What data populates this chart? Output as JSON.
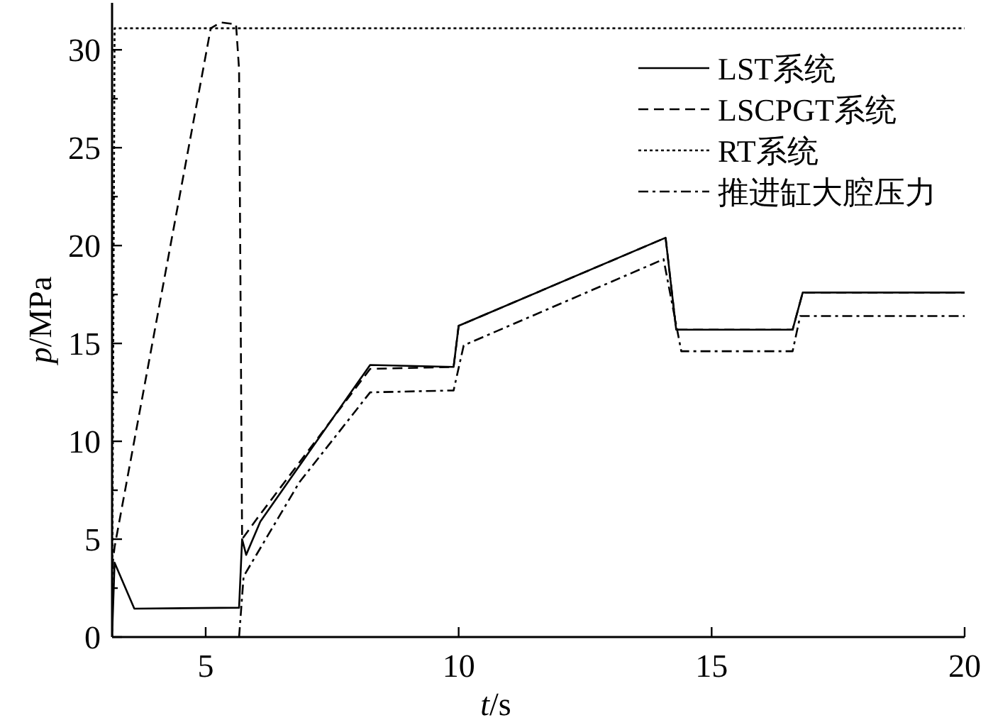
{
  "chart_data": {
    "type": "line",
    "xlabel": "t/s",
    "ylabel": "p/MPa",
    "xlim": [
      3.15,
      20
    ],
    "ylim": [
      0,
      32.4
    ],
    "xticks": [
      5,
      10,
      15,
      20
    ],
    "yticks": [
      0,
      {
        "value": 2.5,
        "label": null
      },
      5,
      {
        "value": 7.5,
        "label": null
      },
      10,
      {
        "value": 12.5,
        "label": null
      },
      15,
      {
        "value": 17.5,
        "label": null
      },
      20,
      {
        "value": 22.5,
        "label": null
      },
      25,
      {
        "value": 27.5,
        "label": null
      },
      30
    ],
    "legend": "top right",
    "grid": false,
    "marker": "none",
    "series": [
      {
        "name": "LST系统",
        "color": "#000000",
        "line_style": "solid",
        "x": [
          3.15,
          3.2,
          3.59,
          5.66,
          5.72,
          5.8,
          6.08,
          8.25,
          9.9,
          10.0,
          14.09,
          14.3,
          16.6,
          16.8,
          20
        ],
        "values": [
          0,
          3.8,
          1.45,
          1.5,
          5.0,
          4.2,
          5.9,
          13.9,
          13.8,
          15.9,
          20.4,
          15.7,
          15.7,
          17.6,
          17.6
        ]
      },
      {
        "name": "LSCPGT系统",
        "color": "#000000",
        "line_style": "dashed",
        "x": [
          3.15,
          3.2,
          5.1,
          5.3,
          5.6,
          5.66,
          5.72,
          6.0,
          8.25,
          9.9,
          10.0,
          14.09,
          14.3,
          16.6,
          16.8,
          20
        ],
        "values": [
          3.5,
          4.6,
          31.1,
          31.4,
          31.3,
          29.0,
          5.0,
          6.0,
          13.7,
          13.8,
          15.9,
          20.4,
          15.7,
          15.7,
          17.6,
          17.6
        ]
      },
      {
        "name": "RT系统",
        "color": "#000000",
        "line_style": "dotted",
        "x": [
          3.15,
          3.2,
          20
        ],
        "values": [
          0,
          31.1,
          31.1
        ]
      },
      {
        "name": "推进缸大腔压力",
        "color": "#000000",
        "line_style": "dashdot",
        "x": [
          5.66,
          5.75,
          6.85,
          8.25,
          9.9,
          10.1,
          14.05,
          14.4,
          16.6,
          16.75,
          20
        ],
        "values": [
          0,
          3.1,
          7.9,
          12.5,
          12.6,
          14.9,
          19.3,
          14.6,
          14.6,
          16.4,
          16.4
        ]
      }
    ]
  }
}
